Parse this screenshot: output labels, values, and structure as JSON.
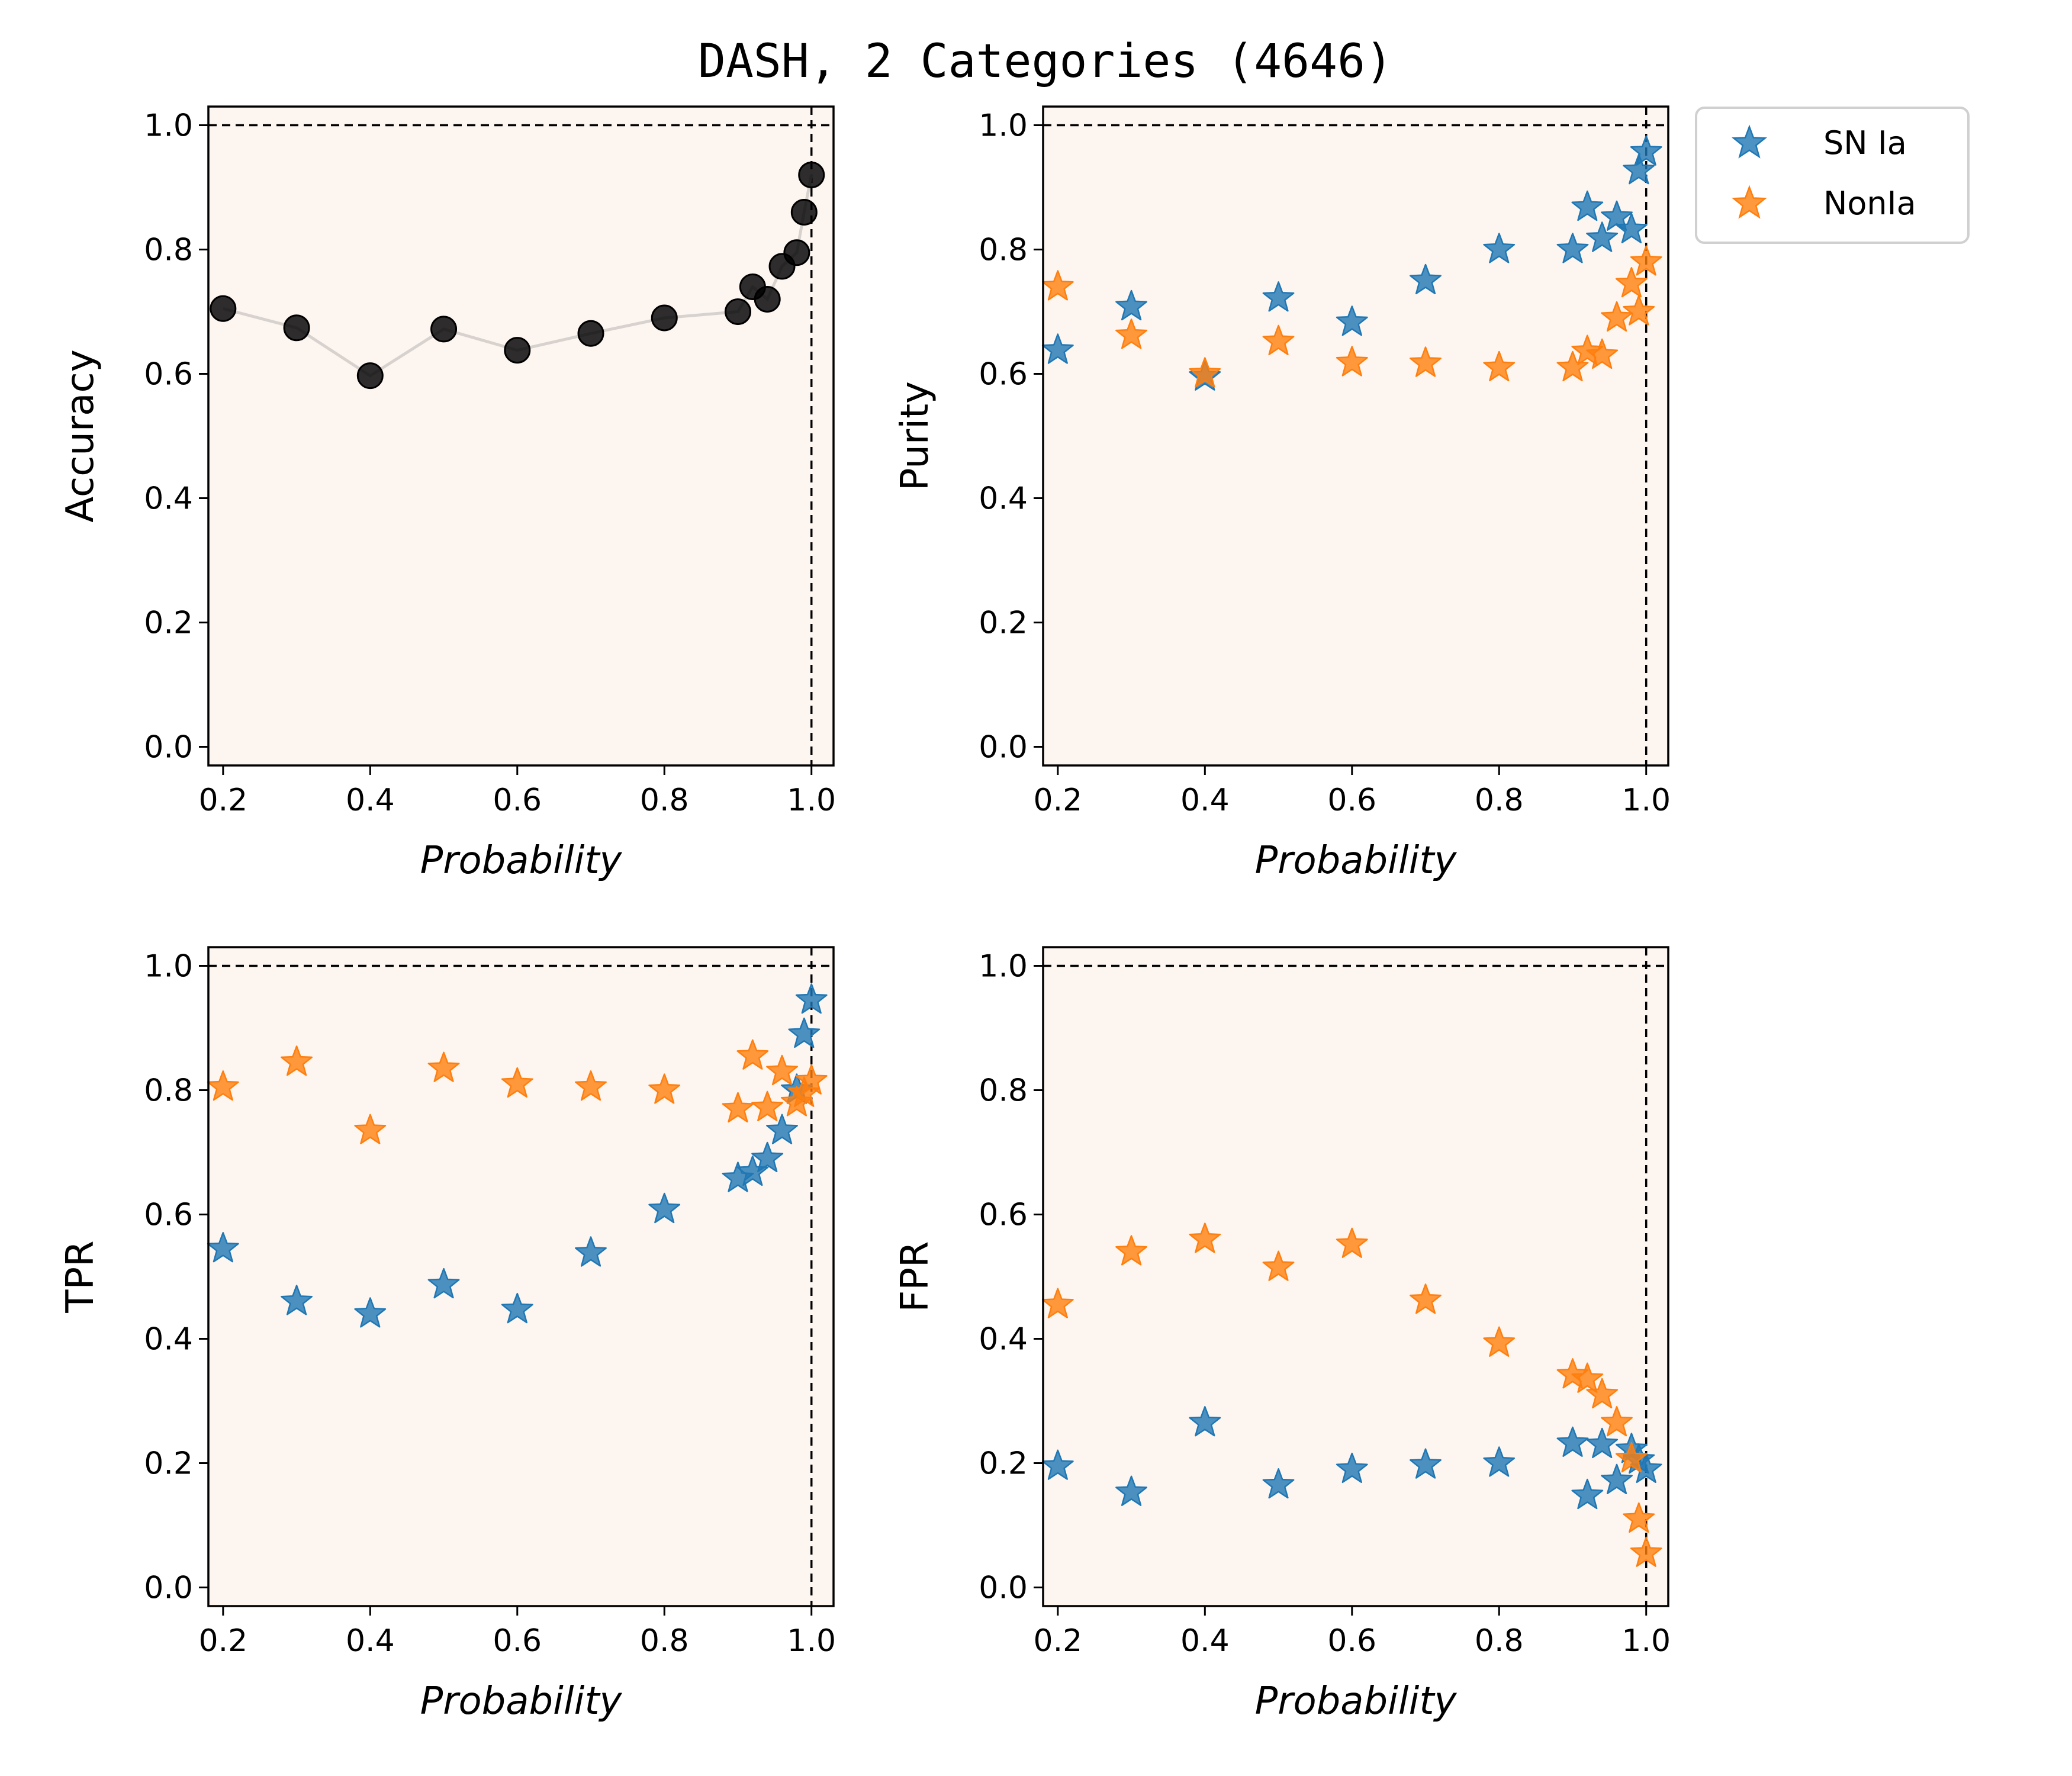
{
  "figure": {
    "title": "DASH, 2 Categories (4646)",
    "background_color": "#ffffff",
    "panel_color": "#fdf5f0",
    "reference_line_color": "#000000"
  },
  "legend": {
    "placement": "outside right of top-right panel",
    "items": [
      {
        "label": "SN Ia",
        "color": "#1f77b4",
        "marker": "star"
      },
      {
        "label": "NonIa",
        "color": "#ff7f0e",
        "marker": "star"
      }
    ]
  },
  "chart_data": [
    {
      "type": "line",
      "name": "accuracy",
      "title": "",
      "xlabel": "Probability",
      "ylabel": "Accuracy",
      "xlim": [
        0.18,
        1.03
      ],
      "ylim": [
        -0.03,
        1.03
      ],
      "xticks": [
        "0.2",
        "0.4",
        "0.6",
        "0.8",
        "1.0"
      ],
      "yticks": [
        "0.0",
        "0.2",
        "0.4",
        "0.6",
        "0.8",
        "1.0"
      ],
      "reference_lines": {
        "y": 1.0,
        "x": 1.0
      },
      "x": [
        0.2,
        0.3,
        0.4,
        0.5,
        0.6,
        0.7,
        0.8,
        0.9,
        0.92,
        0.94,
        0.96,
        0.98,
        0.99,
        1.0
      ],
      "series": [
        {
          "name": "",
          "color": "#000000",
          "marker": "circle",
          "line_color": "#d8d2cf",
          "values": [
            0.705,
            0.674,
            0.597,
            0.672,
            0.638,
            0.665,
            0.69,
            0.7,
            0.74,
            0.72,
            0.773,
            0.795,
            0.86,
            0.92
          ]
        }
      ]
    },
    {
      "type": "scatter",
      "name": "purity",
      "title": "",
      "xlabel": "Probability",
      "ylabel": "Purity",
      "xlim": [
        0.18,
        1.03
      ],
      "ylim": [
        -0.03,
        1.03
      ],
      "xticks": [
        "0.2",
        "0.4",
        "0.6",
        "0.8",
        "1.0"
      ],
      "yticks": [
        "0.0",
        "0.2",
        "0.4",
        "0.6",
        "0.8",
        "1.0"
      ],
      "reference_lines": {
        "y": 1.0,
        "x": 1.0
      },
      "x": [
        0.2,
        0.3,
        0.4,
        0.5,
        0.6,
        0.7,
        0.8,
        0.9,
        0.92,
        0.94,
        0.96,
        0.98,
        0.99,
        1.0
      ],
      "series": [
        {
          "name": "SN Ia",
          "color": "#1f77b4",
          "marker": "star",
          "values": [
            0.638,
            0.708,
            0.595,
            0.722,
            0.683,
            0.75,
            0.8,
            0.8,
            0.868,
            0.818,
            0.852,
            0.832,
            0.927,
            0.957
          ]
        },
        {
          "name": "NonIa",
          "color": "#ff7f0e",
          "marker": "star",
          "values": [
            0.74,
            0.662,
            0.6,
            0.652,
            0.618,
            0.617,
            0.61,
            0.61,
            0.636,
            0.63,
            0.69,
            0.745,
            0.7,
            0.78
          ]
        }
      ]
    },
    {
      "type": "scatter",
      "name": "tpr",
      "title": "",
      "xlabel": "Probability",
      "ylabel": "TPR",
      "xlim": [
        0.18,
        1.03
      ],
      "ylim": [
        -0.03,
        1.03
      ],
      "xticks": [
        "0.2",
        "0.4",
        "0.6",
        "0.8",
        "1.0"
      ],
      "yticks": [
        "0.0",
        "0.2",
        "0.4",
        "0.6",
        "0.8",
        "1.0"
      ],
      "reference_lines": {
        "y": 1.0,
        "x": 1.0
      },
      "x": [
        0.2,
        0.3,
        0.4,
        0.5,
        0.6,
        0.7,
        0.8,
        0.9,
        0.92,
        0.94,
        0.96,
        0.98,
        0.99,
        1.0
      ],
      "series": [
        {
          "name": "SN Ia",
          "color": "#1f77b4",
          "marker": "star",
          "values": [
            0.545,
            0.46,
            0.44,
            0.487,
            0.447,
            0.538,
            0.608,
            0.658,
            0.668,
            0.69,
            0.735,
            0.8,
            0.89,
            0.945
          ]
        },
        {
          "name": "NonIa",
          "color": "#ff7f0e",
          "marker": "star",
          "values": [
            0.805,
            0.845,
            0.735,
            0.835,
            0.81,
            0.805,
            0.8,
            0.77,
            0.855,
            0.772,
            0.83,
            0.78,
            0.795,
            0.815
          ]
        }
      ]
    },
    {
      "type": "scatter",
      "name": "fpr",
      "title": "",
      "xlabel": "Probability",
      "ylabel": "FPR",
      "xlim": [
        0.18,
        1.03
      ],
      "ylim": [
        -0.03,
        1.03
      ],
      "xticks": [
        "0.2",
        "0.4",
        "0.6",
        "0.8",
        "1.0"
      ],
      "yticks": [
        "0.0",
        "0.2",
        "0.4",
        "0.6",
        "0.8",
        "1.0"
      ],
      "reference_lines": {
        "y": 1.0,
        "x": 1.0
      },
      "x": [
        0.2,
        0.3,
        0.4,
        0.5,
        0.6,
        0.7,
        0.8,
        0.9,
        0.92,
        0.94,
        0.96,
        0.98,
        0.99,
        1.0
      ],
      "series": [
        {
          "name": "SN Ia",
          "color": "#1f77b4",
          "marker": "star",
          "values": [
            0.195,
            0.153,
            0.265,
            0.165,
            0.19,
            0.197,
            0.2,
            0.232,
            0.148,
            0.23,
            0.172,
            0.222,
            0.205,
            0.19
          ]
        },
        {
          "name": "NonIa",
          "color": "#ff7f0e",
          "marker": "star",
          "values": [
            0.455,
            0.54,
            0.56,
            0.515,
            0.552,
            0.462,
            0.393,
            0.342,
            0.335,
            0.31,
            0.265,
            0.207,
            0.11,
            0.055
          ]
        }
      ]
    }
  ]
}
